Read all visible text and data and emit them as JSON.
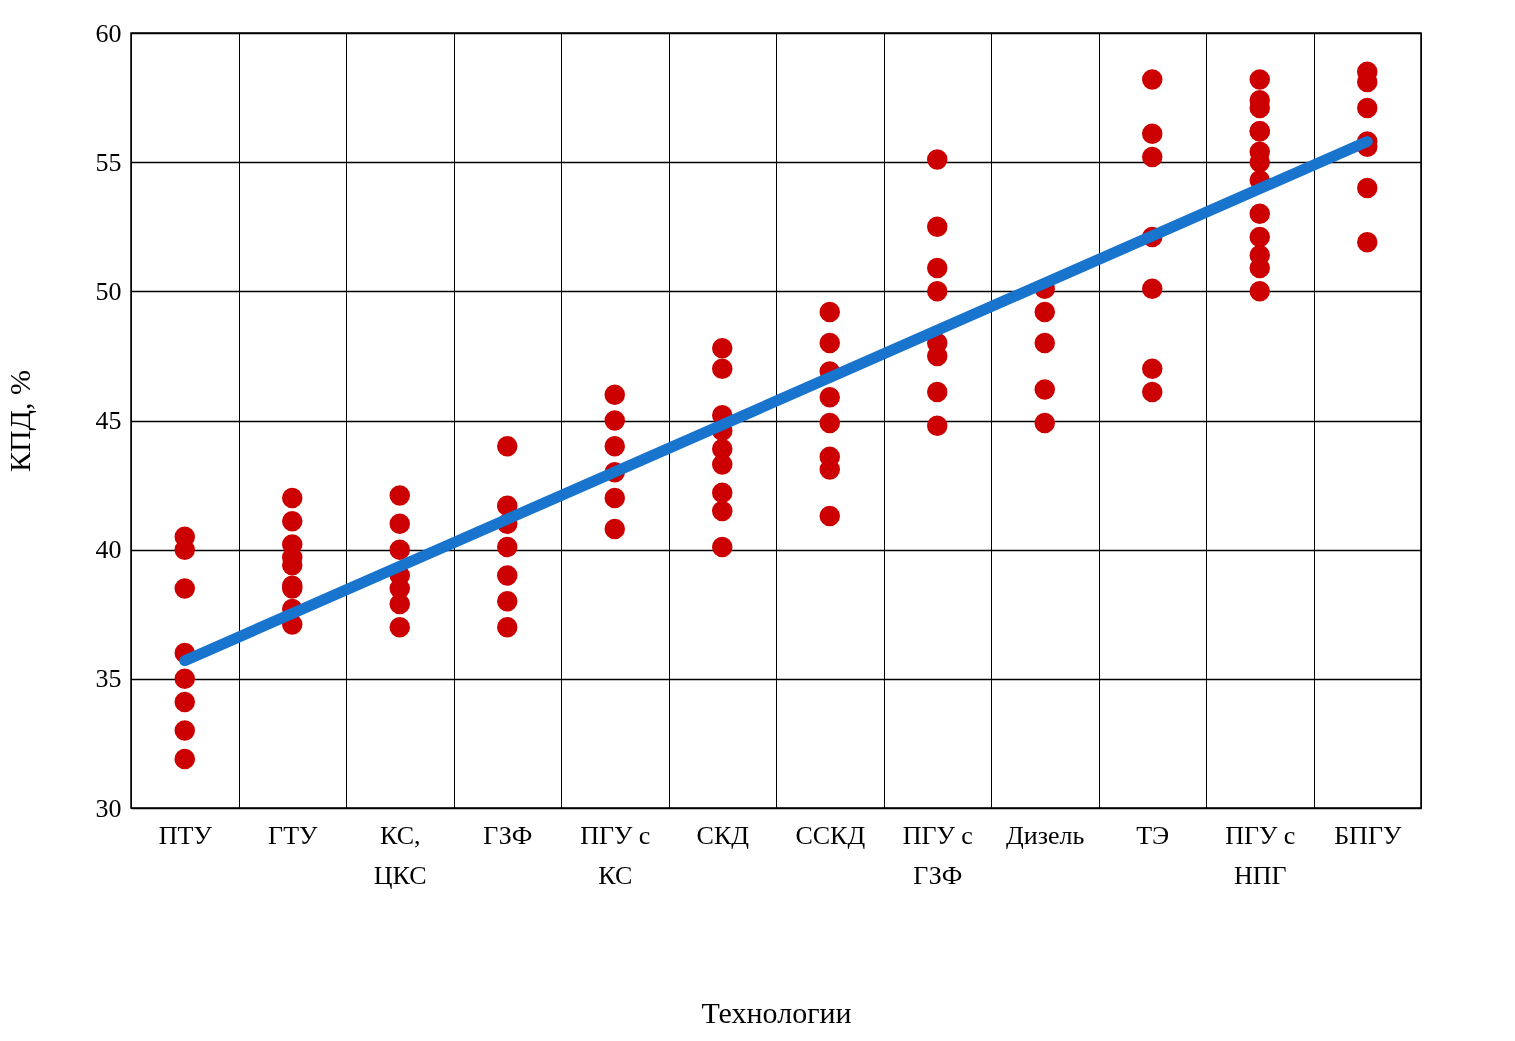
{
  "chart_data": {
    "type": "scatter",
    "xlabel": "Технологии",
    "ylabel": "КПД, %",
    "categories": [
      "ПТУ",
      "ГТУ",
      "КС, ЦКС",
      "ГЗФ",
      "ПГУ с КС",
      "СКД",
      "ССКД",
      "ПГУ с ГЗФ",
      "Дизель",
      "ТЭ",
      "ПГУ с НПГ",
      "БПГУ"
    ],
    "ylim": [
      30,
      60
    ],
    "yticks": [
      30,
      35,
      40,
      45,
      50,
      55,
      60
    ],
    "grid": true,
    "legend": false,
    "marker": "circle",
    "series": [
      {
        "color": "#cc0000",
        "x": [
          "ПТУ",
          "ПТУ",
          "ПТУ",
          "ПТУ",
          "ПТУ",
          "ПТУ",
          "ПТУ",
          "ПТУ",
          "ГТУ",
          "ГТУ",
          "ГТУ",
          "ГТУ",
          "ГТУ",
          "ГТУ",
          "ГТУ",
          "ГТУ",
          "ГТУ",
          "КС, ЦКС",
          "КС, ЦКС",
          "КС, ЦКС",
          "КС, ЦКС",
          "КС, ЦКС",
          "КС, ЦКС",
          "КС, ЦКС",
          "ГЗФ",
          "ГЗФ",
          "ГЗФ",
          "ГЗФ",
          "ГЗФ",
          "ГЗФ",
          "ГЗФ",
          "ПГУ с КС",
          "ПГУ с КС",
          "ПГУ с КС",
          "ПГУ с КС",
          "ПГУ с КС",
          "ПГУ с КС",
          "СКД",
          "СКД",
          "СКД",
          "СКД",
          "СКД",
          "СКД",
          "СКД",
          "СКД",
          "СКД",
          "ССКД",
          "ССКД",
          "ССКД",
          "ССКД",
          "ССКД",
          "ССКД",
          "ССКД",
          "ССКД",
          "ПГУ с ГЗФ",
          "ПГУ с ГЗФ",
          "ПГУ с ГЗФ",
          "ПГУ с ГЗФ",
          "ПГУ с ГЗФ",
          "ПГУ с ГЗФ",
          "ПГУ с ГЗФ",
          "ПГУ с ГЗФ",
          "Дизель",
          "Дизель",
          "Дизель",
          "Дизель",
          "Дизель",
          "ТЭ",
          "ТЭ",
          "ТЭ",
          "ТЭ",
          "ТЭ",
          "ТЭ",
          "ТЭ",
          "ПГУ с НПГ",
          "ПГУ с НПГ",
          "ПГУ с НПГ",
          "ПГУ с НПГ",
          "ПГУ с НПГ",
          "ПГУ с НПГ",
          "ПГУ с НПГ",
          "ПГУ с НПГ",
          "ПГУ с НПГ",
          "ПГУ с НПГ",
          "ПГУ с НПГ",
          "ПГУ с НПГ",
          "ПГУ с НПГ",
          "БПГУ",
          "БПГУ",
          "БПГУ",
          "БПГУ",
          "БПГУ",
          "БПГУ",
          "БПГУ"
        ],
        "values": [
          34.1,
          31.9,
          38.5,
          40.5,
          36.0,
          35.0,
          33.0,
          40.0,
          42.0,
          41.1,
          39.7,
          38.6,
          37.7,
          39.4,
          38.5,
          37.1,
          40.2,
          42.1,
          40.0,
          38.5,
          37.0,
          39.0,
          41.0,
          37.9,
          44.0,
          41.0,
          41.7,
          40.1,
          39.0,
          38.0,
          37.0,
          46.0,
          44.0,
          43.0,
          45.0,
          42.0,
          40.8,
          47.8,
          47.0,
          45.2,
          43.9,
          44.6,
          43.3,
          42.2,
          41.5,
          40.1,
          49.2,
          46.9,
          48.0,
          45.9,
          44.9,
          43.1,
          43.6,
          41.3,
          55.1,
          52.5,
          50.9,
          50.0,
          48.0,
          47.5,
          46.1,
          44.8,
          49.2,
          50.1,
          48.0,
          46.2,
          44.9,
          58.2,
          55.2,
          56.1,
          52.1,
          50.1,
          47.0,
          46.1,
          58.2,
          57.1,
          57.4,
          56.2,
          56.2,
          55.4,
          55.0,
          54.3,
          53.0,
          52.1,
          51.4,
          50.9,
          50.0,
          58.5,
          57.1,
          58.1,
          55.8,
          55.6,
          54.0,
          51.9
        ]
      },
      {
        "type": "line",
        "marker": "none",
        "color": "#1874cd",
        "x": [
          "ПТУ",
          "БПГУ"
        ],
        "values": [
          35.7,
          55.8
        ]
      }
    ]
  }
}
